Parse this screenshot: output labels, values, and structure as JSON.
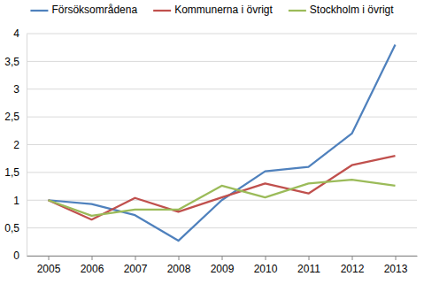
{
  "chart_data": {
    "type": "line",
    "categories": [
      "2005",
      "2006",
      "2007",
      "2008",
      "2009",
      "2010",
      "2011",
      "2012",
      "2013"
    ],
    "series": [
      {
        "name": "Försöksområdena",
        "color": "#4f81bd",
        "values": [
          1,
          0.93,
          0.73,
          0.27,
          1.0,
          1.52,
          1.6,
          2.2,
          3.8
        ]
      },
      {
        "name": "Kommunerna i övrigt",
        "color": "#c0504d",
        "values": [
          1,
          0.65,
          1.04,
          0.79,
          1.05,
          1.3,
          1.12,
          1.63,
          1.8
        ]
      },
      {
        "name": "Stockholm i övrigt",
        "color": "#9bbb59",
        "values": [
          1,
          0.72,
          0.83,
          0.83,
          1.26,
          1.05,
          1.3,
          1.37,
          1.26
        ]
      }
    ],
    "ylim": [
      0,
      4
    ],
    "yticks": [
      0,
      {
        "value": 0.5,
        "label": "0,5"
      },
      1,
      {
        "value": 1.5,
        "label": "1,5"
      },
      2,
      {
        "value": 2.5,
        "label": "2,5"
      },
      3,
      {
        "value": 3.5,
        "label": "3,5"
      },
      4
    ],
    "grid": true,
    "legend": "top"
  }
}
